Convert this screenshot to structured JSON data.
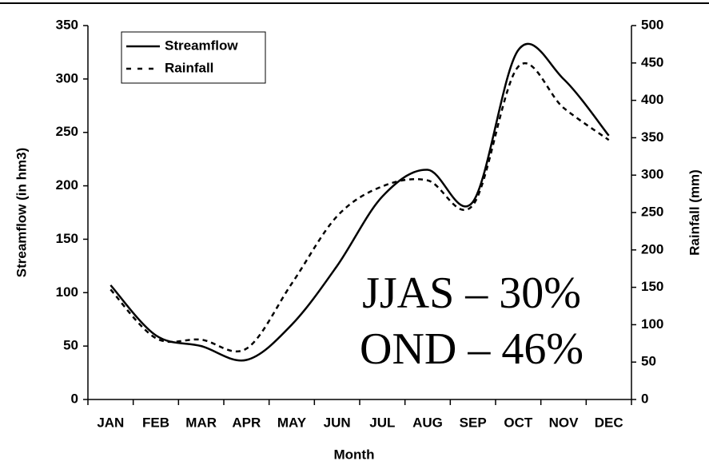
{
  "chart_data": {
    "type": "line",
    "categories": [
      "JAN",
      "FEB",
      "MAR",
      "APR",
      "MAY",
      "JUN",
      "JUL",
      "AUG",
      "SEP",
      "OCT",
      "NOV",
      "DEC"
    ],
    "series": [
      {
        "name": "Streamflow",
        "color": "#000000",
        "style": "solid",
        "values": [
          107,
          60,
          50,
          37,
          70,
          125,
          190,
          215,
          185,
          327,
          300,
          247
        ]
      },
      {
        "name": "Rainfall",
        "color": "#000000",
        "style": "dashed",
        "axis": "y2",
        "values": [
          147,
          82,
          80,
          68,
          155,
          245,
          285,
          293,
          260,
          445,
          390,
          347
        ]
      }
    ],
    "xlabel": "Month",
    "ylabel": "Streamflow (in hm3)",
    "y2label": "Rainfall (mm)",
    "ylim": [
      0,
      350
    ],
    "yticks": [
      0,
      50,
      100,
      150,
      200,
      250,
      300,
      350
    ],
    "y2lim": [
      0,
      500
    ],
    "y2ticks": [
      0,
      50,
      100,
      150,
      200,
      250,
      300,
      350,
      400,
      450,
      500
    ],
    "legend": "upper left",
    "annotations": [
      "JJAS – 30%",
      "OND – 46%"
    ]
  }
}
